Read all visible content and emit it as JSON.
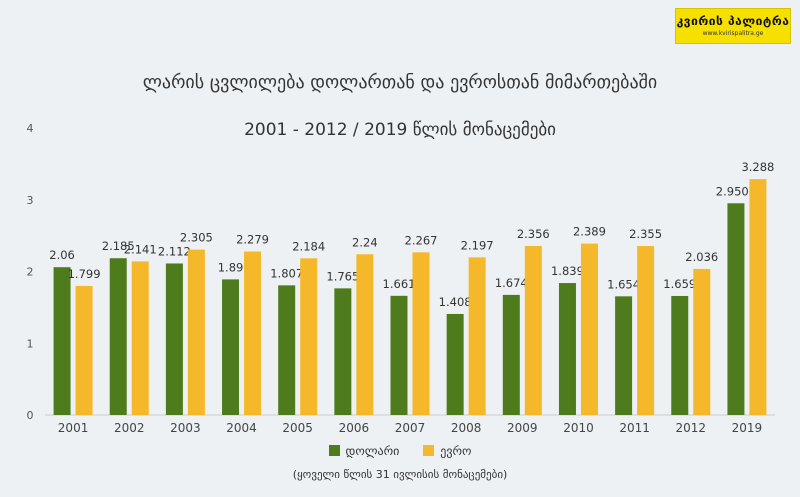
{
  "logo": {
    "name": "კვირის პალიტრა",
    "url": "www.kvirispalitra.ge"
  },
  "colors": {
    "dollar": "#4e7b1c",
    "euro": "#f5b82a",
    "background": "#eef1f4"
  },
  "chart_data": {
    "type": "bar",
    "title": "ლარის ცვლილება დოლართან და ევროსთან მიმართებაში",
    "subtitle": "2001 - 2012 / 2019 წლის მონაცემები",
    "categories": [
      "2001",
      "2002",
      "2003",
      "2004",
      "2005",
      "2006",
      "2007",
      "2008",
      "2009",
      "2010",
      "2011",
      "2012",
      "2019"
    ],
    "series": [
      {
        "name": "დოლარი",
        "values": [
          2.06,
          2.185,
          2.112,
          1.89,
          1.807,
          1.765,
          1.661,
          1.408,
          1.674,
          1.839,
          1.654,
          1.659,
          2.9507
        ],
        "labels": [
          "2.06",
          "2.185",
          "2.112",
          "1.89",
          "1.807",
          "1.765",
          "1.661",
          "1.408",
          "1.674",
          "1.839",
          "1.654",
          "1.659",
          "2.9507"
        ]
      },
      {
        "name": "ევრო",
        "values": [
          1.799,
          2.141,
          2.305,
          2.279,
          2.184,
          2.24,
          2.267,
          2.197,
          2.356,
          2.389,
          2.355,
          2.036,
          3.288
        ],
        "labels": [
          "1.799",
          "2.141",
          "2.305",
          "2.279",
          "2.184",
          "2.24",
          "2.267",
          "2.197",
          "2.356",
          "2.389",
          "2.355",
          "2.036",
          "3.288"
        ]
      }
    ],
    "ylim": [
      0,
      4
    ],
    "yticks": [
      "0",
      "1",
      "2",
      "3",
      "4"
    ],
    "grid": false,
    "legend_position": "bottom",
    "note": "(ყოველი წლის 31 ივლისის მონაცემები)"
  }
}
